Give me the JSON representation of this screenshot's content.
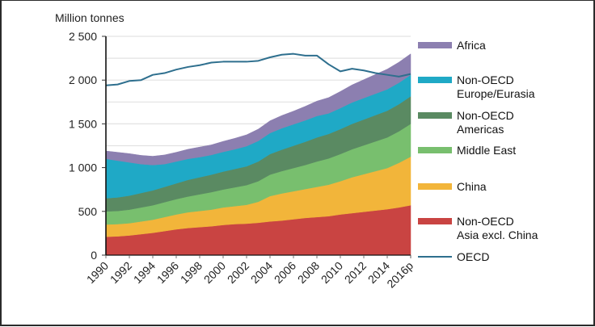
{
  "chart_data": {
    "type": "area",
    "stacked": true,
    "title": "",
    "ylabel": "Million tonnes",
    "xlabel": "",
    "ylim": [
      0,
      2500
    ],
    "yticks": [
      0,
      500,
      1000,
      1500,
      2000,
      2500
    ],
    "ytick_labels": [
      "0",
      "500",
      "1 000",
      "1 500",
      "2 000",
      "2 500"
    ],
    "grid": true,
    "legend_position": "right",
    "x": [
      "1990",
      "1991",
      "1992",
      "1993",
      "1994",
      "1995",
      "1996",
      "1997",
      "1998",
      "1999",
      "2000",
      "2001",
      "2002",
      "2003",
      "2004",
      "2005",
      "2006",
      "2007",
      "2008",
      "2009",
      "2010",
      "2011",
      "2012",
      "2013",
      "2014",
      "2015",
      "2016p"
    ],
    "xtick_labels": [
      "1990",
      "1992",
      "1994",
      "1996",
      "1998",
      "2000",
      "2002",
      "2004",
      "2006",
      "2008",
      "2010",
      "2012",
      "2014",
      "2016p"
    ],
    "series": [
      {
        "name": "Non-OECD Asia excl. China",
        "legend_lines": [
          "Non-OECD",
          "Asia excl. China"
        ],
        "color": "#c94442",
        "kind": "area",
        "values": [
          210,
          215,
          225,
          240,
          255,
          275,
          295,
          310,
          320,
          330,
          345,
          355,
          360,
          370,
          385,
          395,
          410,
          425,
          435,
          445,
          465,
          480,
          495,
          510,
          525,
          545,
          570
        ]
      },
      {
        "name": "China",
        "legend_lines": [
          "China"
        ],
        "color": "#f2b53a",
        "kind": "area",
        "values": [
          140,
          140,
          140,
          145,
          150,
          160,
          170,
          180,
          185,
          190,
          200,
          205,
          215,
          240,
          290,
          310,
          320,
          330,
          345,
          360,
          380,
          410,
          430,
          450,
          470,
          510,
          555
        ]
      },
      {
        "name": "Middle East",
        "legend_lines": [
          "Middle East"
        ],
        "color": "#78bf6e",
        "kind": "area",
        "values": [
          150,
          150,
          155,
          160,
          165,
          170,
          175,
          180,
          190,
          200,
          205,
          215,
          225,
          235,
          245,
          255,
          265,
          275,
          290,
          300,
          310,
          320,
          330,
          340,
          350,
          360,
          375
        ]
      },
      {
        "name": "Non-OECD Americas",
        "legend_lines": [
          "Non-OECD",
          "Americas"
        ],
        "color": "#5a8a62",
        "kind": "area",
        "values": [
          150,
          155,
          160,
          165,
          170,
          175,
          180,
          190,
          195,
          200,
          205,
          210,
          215,
          225,
          235,
          245,
          255,
          265,
          275,
          280,
          285,
          290,
          295,
          300,
          305,
          310,
          315
        ]
      },
      {
        "name": "Non-OECD Europe/Eurasia",
        "legend_lines": [
          "Non-OECD",
          "Europe/Eurasia"
        ],
        "color": "#1fa9c6",
        "kind": "area",
        "values": [
          450,
          420,
          380,
          330,
          290,
          260,
          250,
          240,
          230,
          225,
          225,
          225,
          230,
          235,
          240,
          245,
          245,
          245,
          245,
          235,
          240,
          245,
          245,
          245,
          245,
          245,
          245
        ]
      },
      {
        "name": "Africa",
        "legend_lines": [
          "Africa"
        ],
        "color": "#8c7fb0",
        "kind": "area",
        "values": [
          90,
          95,
          100,
          100,
          100,
          105,
          105,
          110,
          115,
          115,
          120,
          125,
          130,
          135,
          140,
          145,
          150,
          160,
          170,
          180,
          190,
          200,
          210,
          220,
          230,
          235,
          240
        ]
      },
      {
        "name": "OECD",
        "legend_lines": [
          "OECD"
        ],
        "color": "#2e6f8e",
        "kind": "line",
        "values": [
          1940,
          1950,
          1990,
          2000,
          2060,
          2080,
          2120,
          2150,
          2170,
          2200,
          2210,
          2210,
          2210,
          2220,
          2260,
          2290,
          2300,
          2280,
          2280,
          2180,
          2100,
          2130,
          2110,
          2080,
          2060,
          2040,
          2070
        ]
      }
    ],
    "legend_order": [
      "Africa",
      "Non-OECD Europe/Eurasia",
      "Non-OECD Americas",
      "Middle East",
      "China",
      "Non-OECD Asia excl. China",
      "OECD"
    ]
  }
}
